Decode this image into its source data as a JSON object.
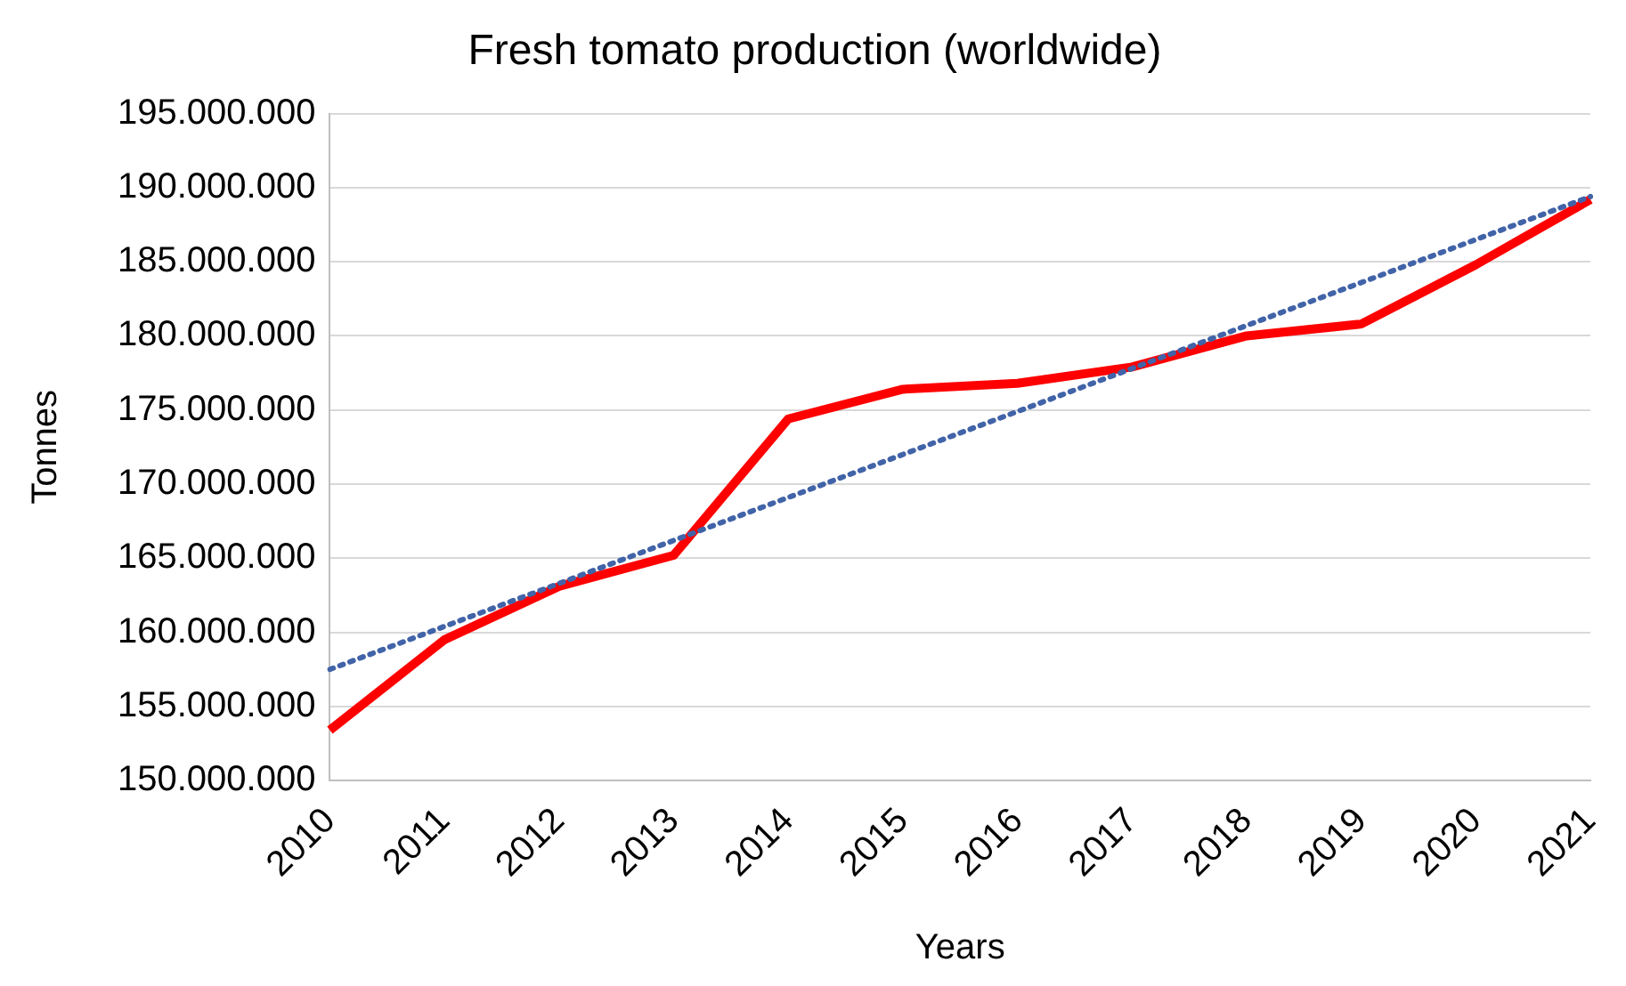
{
  "chart_data": {
    "type": "line",
    "title": "Fresh tomato production (worldwide)",
    "xlabel": "Years",
    "ylabel": "Tonnes",
    "categories": [
      "2010",
      "2011",
      "2012",
      "2013",
      "2014",
      "2015",
      "2016",
      "2017",
      "2018",
      "2019",
      "2020",
      "2021"
    ],
    "series": [
      {
        "color": "#ff0000",
        "values": [
          153400000,
          159500000,
          163100000,
          165200000,
          174400000,
          176400000,
          176800000,
          177900000,
          180000000,
          180800000,
          184800000,
          189200000
        ]
      },
      {
        "line_style": "dotted",
        "color": "#4163a8",
        "values": [
          157500000,
          null,
          null,
          null,
          null,
          null,
          null,
          null,
          null,
          null,
          null,
          189400000
        ]
      }
    ],
    "ylim": [
      150000000,
      195000000
    ],
    "yticks": [
      {
        "value": 150000000,
        "label": "150.000.000"
      },
      {
        "value": 155000000,
        "label": "155.000.000"
      },
      {
        "value": 160000000,
        "label": "160.000.000"
      },
      {
        "value": 165000000,
        "label": "165.000.000"
      },
      {
        "value": 170000000,
        "label": "170.000.000"
      },
      {
        "value": 175000000,
        "label": "175.000.000"
      },
      {
        "value": 180000000,
        "label": "180.000.000"
      },
      {
        "value": 185000000,
        "label": "185.000.000"
      },
      {
        "value": 190000000,
        "label": "190.000.000"
      },
      {
        "value": 195000000,
        "label": "195.000.000"
      }
    ],
    "grid": "y",
    "legend": false,
    "marker": "none",
    "line_style": "solid"
  }
}
